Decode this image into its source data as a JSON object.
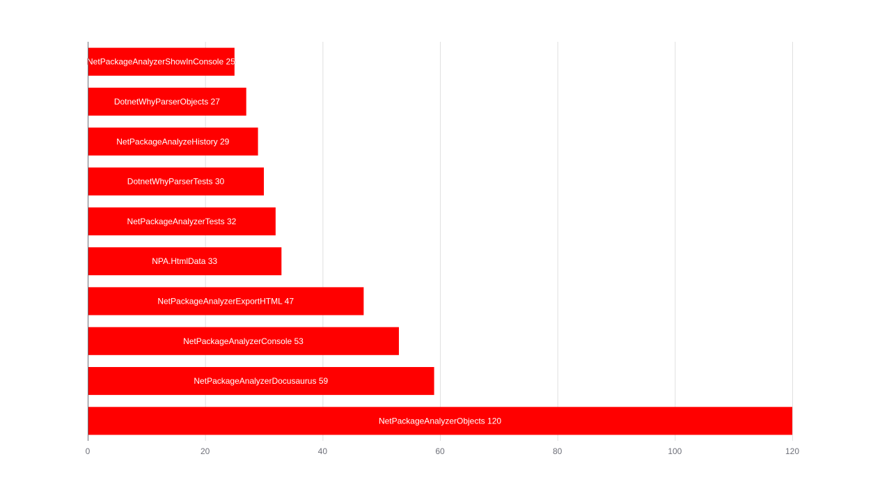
{
  "chart_data": {
    "type": "bar",
    "orientation": "horizontal",
    "title": "",
    "xlabel": "",
    "ylabel": "",
    "xlim": [
      0,
      120
    ],
    "x_ticks": [
      0,
      20,
      40,
      60,
      80,
      100,
      120
    ],
    "grid": "vertical",
    "bar_color": "#ff0000",
    "label_color": "#ffffff",
    "categories": [
      "NetPackageAnalyzerShowInConsole",
      "DotnetWhyParserObjects",
      "NetPackageAnalyzeHistory",
      "DotnetWhyParserTests",
      "NetPackageAnalyzerTests",
      "NPA.HtmlData",
      "NetPackageAnalyzerExportHTML",
      "NetPackageAnalyzerConsole",
      "NetPackageAnalyzerDocusaurus",
      "NetPackageAnalyzerObjects"
    ],
    "values": [
      25,
      27,
      29,
      30,
      32,
      33,
      47,
      53,
      59,
      120
    ]
  }
}
